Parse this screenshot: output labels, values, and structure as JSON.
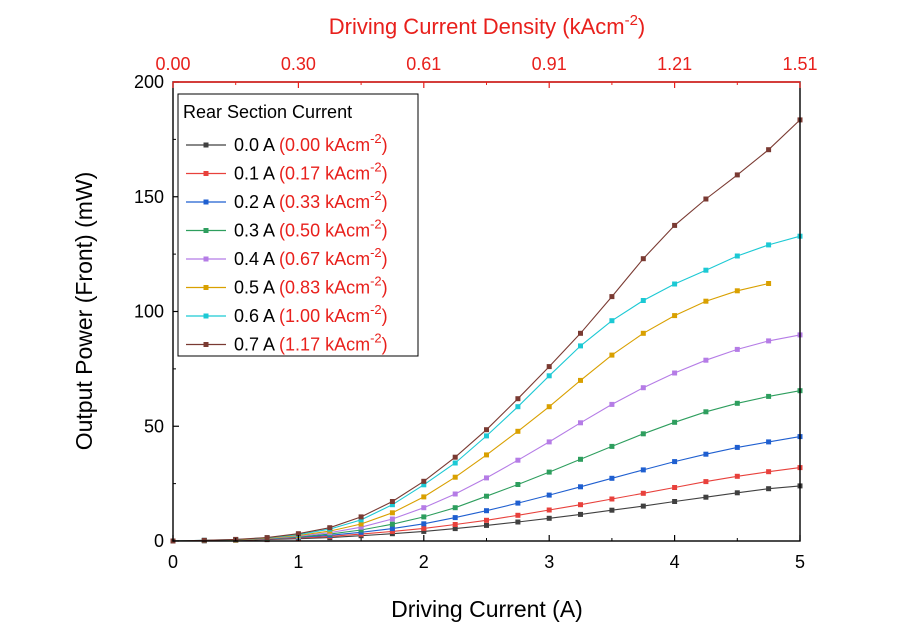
{
  "chart_data": {
    "type": "line",
    "xlabel": "Driving Current (A)",
    "ylabel": "Output Power (Front) (mW)",
    "top_xlabel": "Driving Current Density (kAcm",
    "top_xlabel_sup": "-2",
    "top_xlabel_close": ")",
    "xlim": [
      0,
      5
    ],
    "ylim": [
      0,
      200
    ],
    "x_ticks": [
      {
        "value": 0,
        "label": "0"
      },
      {
        "value": 1,
        "label": "1"
      },
      {
        "value": 2,
        "label": "2"
      },
      {
        "value": 3,
        "label": "3"
      },
      {
        "value": 4,
        "label": "4"
      },
      {
        "value": 5,
        "label": "5"
      }
    ],
    "y_ticks": [
      {
        "value": 0,
        "label": "0"
      },
      {
        "value": 50,
        "label": "50"
      },
      {
        "value": 100,
        "label": "100"
      },
      {
        "value": 150,
        "label": "150"
      },
      {
        "value": 200,
        "label": "200"
      }
    ],
    "top_ticks": [
      {
        "value": 0,
        "label": "0.00"
      },
      {
        "value": 1,
        "label": "0.30"
      },
      {
        "value": 2,
        "label": "0.61"
      },
      {
        "value": 3,
        "label": "0.91"
      },
      {
        "value": 4,
        "label": "1.21"
      },
      {
        "value": 5,
        "label": "1.51"
      }
    ],
    "legend_title": "Rear Section Current",
    "legend_position": "top-left",
    "colors": {
      "axis": "#000000",
      "top_axis": "#e8201c",
      "density_text": "#e8201c"
    },
    "x": [
      0,
      0.25,
      0.5,
      0.75,
      1,
      1.25,
      1.5,
      1.75,
      2,
      2.25,
      2.5,
      2.75,
      3,
      3.25,
      3.5,
      3.75,
      4,
      4.25,
      4.5,
      4.75,
      5
    ],
    "series": [
      {
        "name": "0.0 A",
        "density": "(0.00 kAcm",
        "color": "#404040",
        "values": [
          0,
          0.1,
          0.3,
          0.6,
          1.0,
          1.5,
          2.3,
          3.2,
          4.2,
          5.4,
          6.8,
          8.3,
          9.9,
          11.6,
          13.4,
          15.2,
          17.2,
          19.1,
          21.0,
          22.8,
          24.0
        ]
      },
      {
        "name": "0.1 A",
        "density": "(0.17 kAcm",
        "color": "#e8413c",
        "values": [
          0,
          0.2,
          0.4,
          0.8,
          1.3,
          2.0,
          3.0,
          4.2,
          5.5,
          7.2,
          9.0,
          11.2,
          13.5,
          15.8,
          18.3,
          20.8,
          23.3,
          25.9,
          28.2,
          30.2,
          32.0
        ]
      },
      {
        "name": "0.2 A",
        "density": "(0.33 kAcm",
        "color": "#1f5fd0",
        "values": [
          0,
          0.2,
          0.5,
          0.9,
          1.6,
          2.5,
          3.8,
          5.4,
          7.5,
          10.2,
          13.2,
          16.5,
          20.0,
          23.6,
          27.3,
          31.0,
          34.6,
          37.8,
          40.8,
          43.2,
          45.5
        ]
      },
      {
        "name": "0.3 A",
        "density": "(0.50 kAcm",
        "color": "#2e9e5e",
        "values": [
          0,
          0.2,
          0.5,
          1.0,
          1.8,
          3.0,
          4.8,
          7.3,
          10.5,
          14.5,
          19.5,
          24.6,
          30.0,
          35.6,
          41.2,
          46.7,
          51.7,
          56.3,
          60.0,
          63.0,
          65.5
        ]
      },
      {
        "name": "0.4 A",
        "density": "(0.67 kAcm",
        "color": "#b57ce6",
        "values": [
          0,
          0.2,
          0.5,
          1.1,
          2.1,
          3.6,
          6.0,
          9.6,
          14.5,
          20.5,
          27.5,
          35.2,
          43.2,
          51.5,
          59.5,
          66.8,
          73.2,
          78.8,
          83.5,
          87.2,
          89.8
        ]
      },
      {
        "name": "0.5 A",
        "density": "(0.83 kAcm",
        "color": "#d9a000",
        "values": [
          0,
          0.2,
          0.5,
          1.2,
          2.4,
          4.3,
          7.4,
          12.3,
          19.2,
          27.8,
          37.5,
          47.8,
          58.5,
          70.0,
          81.0,
          90.5,
          98.2,
          104.5,
          109.0,
          112.2,
          null
        ]
      },
      {
        "name": "0.6 A",
        "density": "(1.00 kAcm",
        "color": "#1cc9d4",
        "values": [
          0,
          0.3,
          0.6,
          1.4,
          2.8,
          5.2,
          9.2,
          15.8,
          24.5,
          34.0,
          45.8,
          58.5,
          72.0,
          85.0,
          96.0,
          104.8,
          112.0,
          118.0,
          124.2,
          129.0,
          132.8
        ]
      },
      {
        "name": "0.7 A",
        "density": "(1.17 kAcm",
        "color": "#7a3a32",
        "values": [
          0,
          0.3,
          0.7,
          1.5,
          3.2,
          5.8,
          10.5,
          17.2,
          26.0,
          36.5,
          48.5,
          62.0,
          76.0,
          90.5,
          106.5,
          123.0,
          137.5,
          149.0,
          159.5,
          170.5,
          183.5
        ]
      }
    ]
  }
}
